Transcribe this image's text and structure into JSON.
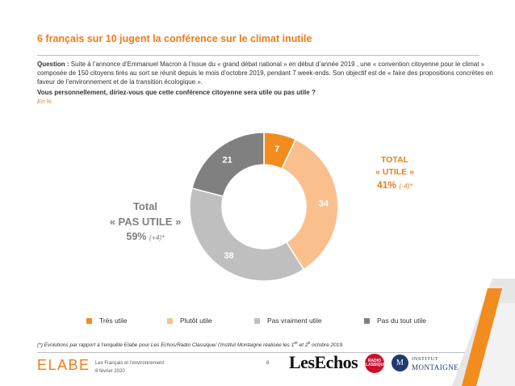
{
  "page": {
    "title": "6 français sur 10 jugent la conférence sur le climat inutile",
    "question_label": "Question :",
    "question_text": " Suite à l’annonce d’Emmanuel Macron à l’issue du « grand débat national » en début d’année 2019 , une « convention citoyenne pour le climat » composée de 150 citoyens tirés au sort se réunit depuis le mois d’octobre 2019, pendant 7 week-ends. Son objectif est de « faire des propositions concrètes en faveur de l’environnement et de la transition écologique ».",
    "question_bold": "Vous personnellement, diriez-vous que cette conférence citoyenne sera utile ou pas utile ?",
    "unit": "En %"
  },
  "summary_left": {
    "line1": "Total",
    "line2": "« PAS UTILE »",
    "value": "59%",
    "evolution": "(+4)*"
  },
  "summary_right": {
    "line1": "TOTAL",
    "line2": "« UTILE »",
    "value": "41%",
    "evolution": "(-4)*"
  },
  "chart_data": {
    "type": "pie",
    "donut": true,
    "categories": [
      "Très utile",
      "Plutôt utile",
      "Pas vraiment utile",
      "Pas du tout utile"
    ],
    "values": [
      7,
      34,
      38,
      21
    ],
    "colors": [
      "#F28C1E",
      "#F9C08E",
      "#BFBFBF",
      "#808080"
    ],
    "label_colors": [
      "#ffffff",
      "#ffffff",
      "#ffffff",
      "#ffffff"
    ],
    "legend_position": "bottom"
  },
  "footnote": {
    "text_before": "(*) Evolutions par rapport à l’enquête Elabe pour Les Echos/Radio Classique/ l’Institut Montaigne réalisée les 1",
    "sup1": "er",
    "text_mid": " et 2",
    "sup2": "e",
    "text_after": " octobre 2019."
  },
  "footer": {
    "brand": "ELABE",
    "line1": "Les Français et l’environnement",
    "line2": "6 février 2020",
    "page_number": "8",
    "partner1": "LesEchos",
    "partner2_text": "RADIO CLASSIQUE",
    "partner3_badge": "M",
    "partner3_line1": "INSTITUT",
    "partner3_line2": "MONTAIGNE"
  },
  "colors": {
    "accent": "#ED7D1A",
    "dark_grey": "#7f7f7f",
    "deco_grey": "#d9d9d9"
  }
}
